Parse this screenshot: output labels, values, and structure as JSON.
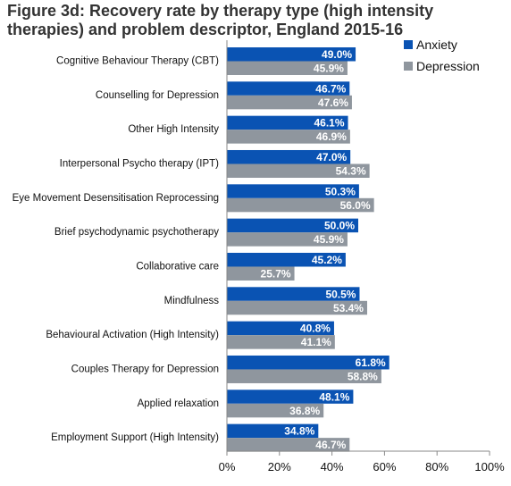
{
  "title": "Figure 3d: Recovery rate by therapy type (high intensity therapies) and problem descriptor, England 2015-16",
  "colors": {
    "anxiety": "#0a53b3",
    "depression": "#8f969e",
    "axis": "#888888"
  },
  "chart_data": {
    "type": "bar",
    "orientation": "horizontal",
    "title": "Figure 3d: Recovery rate by therapy type (high intensity therapies) and problem descriptor, England 2015-16",
    "categories": [
      "Cognitive Behaviour Therapy (CBT)",
      "Counselling for Depression",
      "Other High Intensity",
      "Interpersonal Psycho therapy (IPT)",
      "Eye Movement Desensitisation Reprocessing",
      "Brief psychodynamic psychotherapy",
      "Collaborative care",
      "Mindfulness",
      "Behavioural Activation (High Intensity)",
      "Couples Therapy for Depression",
      "Applied relaxation",
      "Employment Support (High Intensity)"
    ],
    "series": [
      {
        "name": "Anxiety",
        "values": [
          49.0,
          46.7,
          46.1,
          47.0,
          50.3,
          50.0,
          45.2,
          50.5,
          40.8,
          61.8,
          48.1,
          34.8
        ],
        "labels": [
          "49.0%",
          "46.7%",
          "46.1%",
          "47.0%",
          "50.3%",
          "50.0%",
          "45.2%",
          "50.5%",
          "40.8%",
          "61.8%",
          "48.1%",
          "34.8%"
        ]
      },
      {
        "name": "Depression",
        "values": [
          45.9,
          47.6,
          46.9,
          54.3,
          56.0,
          45.9,
          25.7,
          53.4,
          41.1,
          58.8,
          36.8,
          46.7
        ],
        "labels": [
          "45.9%",
          "47.6%",
          "46.9%",
          "54.3%",
          "56.0%",
          "45.9%",
          "25.7%",
          "53.4%",
          "41.1%",
          "58.8%",
          "36.8%",
          "46.7%"
        ]
      }
    ],
    "xlim": [
      0,
      100
    ],
    "xticks": [
      0,
      20,
      40,
      60,
      80,
      100
    ],
    "xtick_labels": [
      "0%",
      "20%",
      "40%",
      "60%",
      "80%",
      "100%"
    ],
    "legend": {
      "entries": [
        "Anxiety",
        "Depression"
      ],
      "position": "top-right"
    },
    "grid": false
  }
}
